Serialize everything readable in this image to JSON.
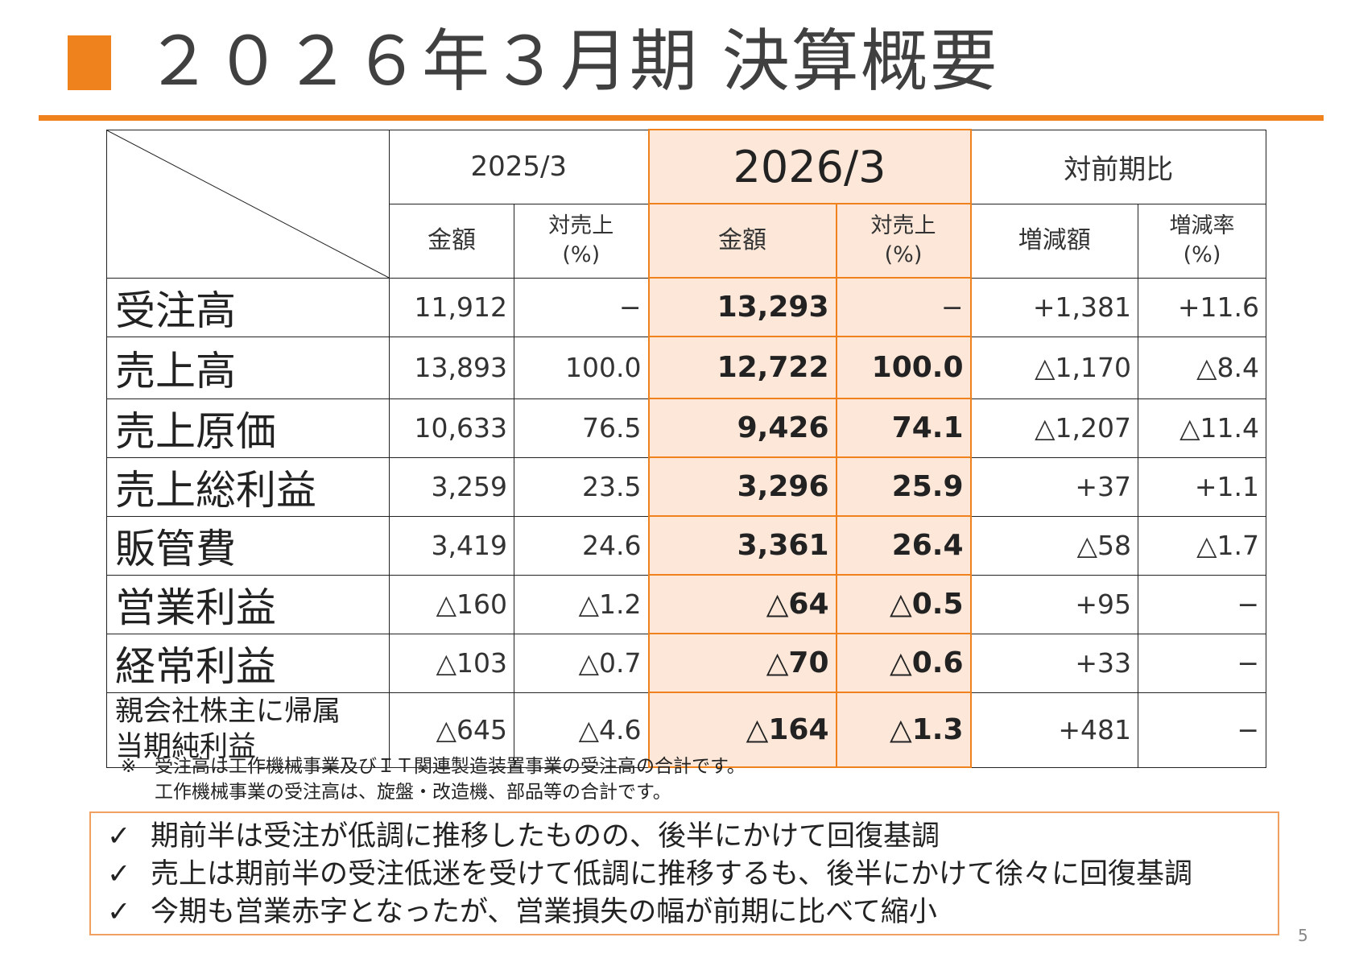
{
  "title": "２０２６年３月期 決算概要",
  "colors": {
    "accent": "#f0821e",
    "highlight_bg": "#fce7d8"
  },
  "table": {
    "year_prev": "2025/3",
    "year_curr": "2026/3",
    "comparison": "対前期比",
    "col_amount": "金額",
    "col_ratio_l1": "対売上",
    "col_ratio_l2": "(%)",
    "col_diff": "増減額",
    "col_rate_l1": "増減率",
    "col_rate_l2": "(%)",
    "rows": [
      {
        "label": "受注高",
        "prev_amount": "11,912",
        "prev_ratio": "−",
        "curr_amount": "13,293",
        "curr_ratio": "−",
        "diff": "+1,381",
        "rate": "+11.6"
      },
      {
        "label": "売上高",
        "prev_amount": "13,893",
        "prev_ratio": "100.0",
        "curr_amount": "12,722",
        "curr_ratio": "100.0",
        "diff": "△1,170",
        "rate": "△8.4"
      },
      {
        "label": "売上原価",
        "prev_amount": "10,633",
        "prev_ratio": "76.5",
        "curr_amount": "9,426",
        "curr_ratio": "74.1",
        "diff": "△1,207",
        "rate": "△11.4"
      },
      {
        "label": "売上総利益",
        "prev_amount": "3,259",
        "prev_ratio": "23.5",
        "curr_amount": "3,296",
        "curr_ratio": "25.9",
        "diff": "+37",
        "rate": "+1.1"
      },
      {
        "label": "販管費",
        "prev_amount": "3,419",
        "prev_ratio": "24.6",
        "curr_amount": "3,361",
        "curr_ratio": "26.4",
        "diff": "△58",
        "rate": "△1.7"
      },
      {
        "label": "営業利益",
        "prev_amount": "△160",
        "prev_ratio": "△1.2",
        "curr_amount": "△64",
        "curr_ratio": "△0.5",
        "diff": "+95",
        "rate": "−"
      },
      {
        "label": "経常利益",
        "prev_amount": "△103",
        "prev_ratio": "△0.7",
        "curr_amount": "△70",
        "curr_ratio": "△0.6",
        "diff": "+33",
        "rate": "−"
      },
      {
        "label_l1": "親会社株主に帰属",
        "label_l2": "当期純利益",
        "prev_amount": "△645",
        "prev_ratio": "△4.6",
        "curr_amount": "△164",
        "curr_ratio": "△1.3",
        "diff": "+481",
        "rate": "−"
      }
    ]
  },
  "footnote": {
    "mark": "※",
    "line1": "受注高は工作機械事業及びＩＴ関連製造装置事業の受注高の合計です。",
    "line2": "工作機械事業の受注高は、旋盤・改造機、部品等の合計です。"
  },
  "points": {
    "check": "✓",
    "items": [
      "期前半は受注が低調に推移したものの、後半にかけて回復基調",
      "売上は期前半の受注低迷を受けて低調に推移するも、後半にかけて徐々に回復基調",
      "今期も営業赤字となったが、営業損失の幅が前期に比べて縮小"
    ]
  },
  "page_number": "5"
}
